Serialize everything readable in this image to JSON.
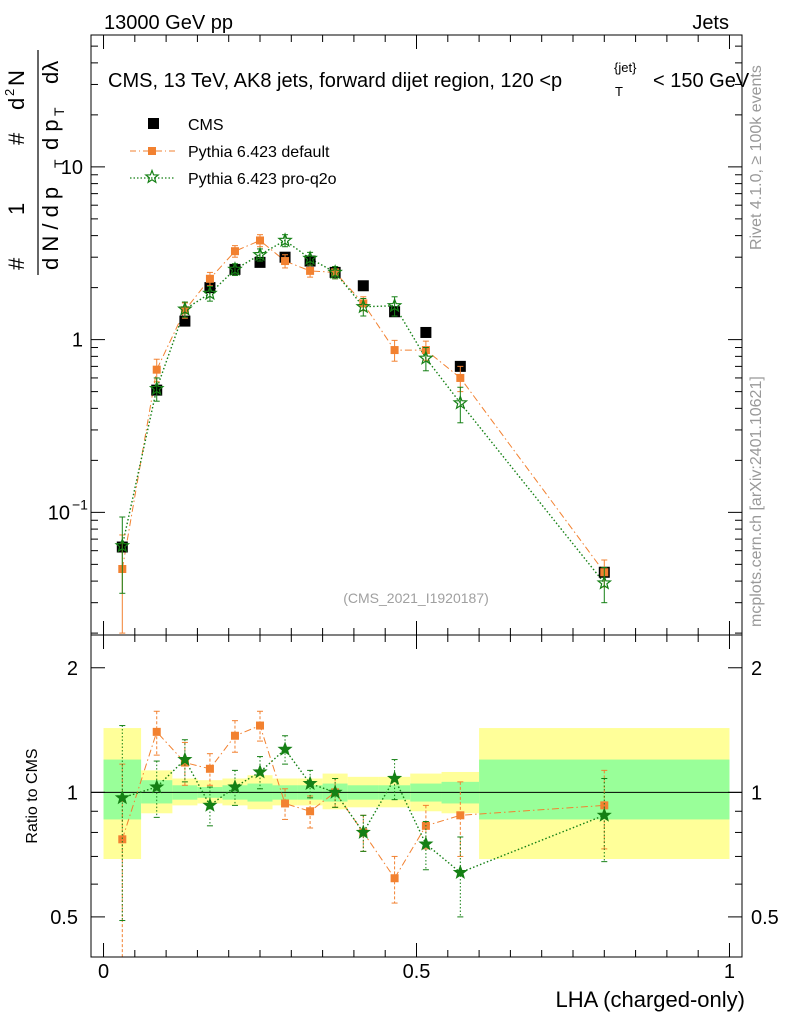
{
  "header": {
    "left": "13000 GeV pp",
    "right": "Jets"
  },
  "side": {
    "rivet": "Rivet 4.1.0, ≥ 100k events",
    "mcplots": "mcplots.cern.ch [arXiv:2401.10621]"
  },
  "chart_data": [
    {
      "type": "scatter",
      "panel": "main",
      "title": "CMS, 13 TeV, AK8 jets, forward dijet region, 120 <p_T^{jet}< 150 GeV",
      "title_main": "CMS, 13 TeV, AK8 jets, forward dijet region, 120 <p",
      "title_sup": "{jet}",
      "title_sub": "T",
      "title_end": "< 150 GeV",
      "ylabel": "#1/dN/dp_T #d²N/dp_T dλ",
      "ylabel_parts": {
        "numer_one": "1",
        "denom_one": "d N / d p",
        "denom_one_sub": "T",
        "hash": "#",
        "numer_two": "d",
        "numer_two_sup": "2",
        "numer_two_end": "N",
        "denom_two": "d p",
        "denom_two_sub": "T",
        "denom_two_end": "dλ"
      },
      "yscale": "log",
      "ylim": [
        0.0195,
        58
      ],
      "xlim": [
        -0.02,
        1.02
      ],
      "ytick_labels": [
        {
          "value": 0.1,
          "base": "10",
          "exp": "−1"
        },
        {
          "value": 1,
          "base": "1",
          "exp": ""
        },
        {
          "value": 10,
          "base": "10",
          "exp": ""
        }
      ],
      "watermark": "(CMS_2021_I1920187)",
      "legend_position": "top-left",
      "x": [
        0.03,
        0.085,
        0.13,
        0.17,
        0.21,
        0.25,
        0.29,
        0.33,
        0.37,
        0.415,
        0.465,
        0.515,
        0.57,
        0.8
      ],
      "series": [
        {
          "name": "CMS",
          "marker": "square",
          "color": "#000000",
          "values": [
            0.063,
            0.51,
            1.28,
            2.0,
            2.55,
            2.8,
            3.0,
            2.85,
            2.45,
            2.05,
            1.45,
            1.1,
            0.7,
            0.045
          ],
          "errors": [
            0.005,
            0.03,
            0.06,
            0.08,
            0.1,
            0.1,
            0.1,
            0.1,
            0.09,
            0.08,
            0.06,
            0.05,
            0.04,
            0.003
          ]
        },
        {
          "name": "Pythia 6.423 default",
          "marker": "filled-square",
          "color": "#f28130",
          "linestyle": "dashdot",
          "values": [
            0.047,
            0.67,
            1.48,
            2.25,
            3.25,
            3.75,
            2.85,
            2.5,
            2.45,
            1.62,
            0.87,
            0.87,
            0.6,
            0.045
          ],
          "errors": [
            0.027,
            0.1,
            0.15,
            0.2,
            0.25,
            0.3,
            0.25,
            0.2,
            0.2,
            0.15,
            0.12,
            0.11,
            0.1,
            0.008
          ]
        },
        {
          "name": "Pythia 6.423 pro-q2o",
          "marker": "star",
          "color": "#158015",
          "linestyle": "dotted",
          "values": [
            0.064,
            0.52,
            1.5,
            1.85,
            2.55,
            3.1,
            3.75,
            2.95,
            2.45,
            1.55,
            1.57,
            0.78,
            0.43,
            0.039
          ],
          "errors": [
            0.03,
            0.08,
            0.15,
            0.18,
            0.2,
            0.25,
            0.3,
            0.25,
            0.2,
            0.18,
            0.2,
            0.12,
            0.1,
            0.009
          ]
        }
      ]
    },
    {
      "type": "scatter",
      "panel": "ratio",
      "ylabel": "Ratio to CMS",
      "xlabel": "LHA (charged-only)",
      "yscale": "log",
      "ylim": [
        0.4,
        2.4
      ],
      "xlim": [
        -0.02,
        1.02
      ],
      "yticks": [
        0.5,
        1,
        2
      ],
      "ytick_labels": [
        "0.5",
        "1",
        "2"
      ],
      "xticks": [
        0,
        0.5,
        1
      ],
      "xtick_labels": [
        "0",
        "0.5",
        "1"
      ],
      "reference": 1,
      "bands": [
        {
          "x0": 0.0,
          "x1": 0.06,
          "yellow": [
            0.69,
            1.43
          ],
          "green": [
            0.86,
            1.2
          ]
        },
        {
          "x0": 0.06,
          "x1": 0.11,
          "yellow": [
            0.89,
            1.13
          ],
          "green": [
            0.94,
            1.07
          ]
        },
        {
          "x0": 0.11,
          "x1": 0.15,
          "yellow": [
            0.93,
            1.08
          ],
          "green": [
            0.96,
            1.04
          ]
        },
        {
          "x0": 0.15,
          "x1": 0.19,
          "yellow": [
            0.94,
            1.07
          ],
          "green": [
            0.97,
            1.03
          ]
        },
        {
          "x0": 0.19,
          "x1": 0.23,
          "yellow": [
            0.93,
            1.08
          ],
          "green": [
            0.96,
            1.04
          ]
        },
        {
          "x0": 0.23,
          "x1": 0.27,
          "yellow": [
            0.91,
            1.1
          ],
          "green": [
            0.95,
            1.05
          ]
        },
        {
          "x0": 0.27,
          "x1": 0.31,
          "yellow": [
            0.93,
            1.08
          ],
          "green": [
            0.96,
            1.04
          ]
        },
        {
          "x0": 0.31,
          "x1": 0.35,
          "yellow": [
            0.93,
            1.08
          ],
          "green": [
            0.96,
            1.04
          ]
        },
        {
          "x0": 0.35,
          "x1": 0.39,
          "yellow": [
            0.91,
            1.11
          ],
          "green": [
            0.95,
            1.05
          ]
        },
        {
          "x0": 0.39,
          "x1": 0.44,
          "yellow": [
            0.92,
            1.09
          ],
          "green": [
            0.96,
            1.04
          ]
        },
        {
          "x0": 0.44,
          "x1": 0.49,
          "yellow": [
            0.92,
            1.09
          ],
          "green": [
            0.96,
            1.04
          ]
        },
        {
          "x0": 0.49,
          "x1": 0.54,
          "yellow": [
            0.9,
            1.11
          ],
          "green": [
            0.95,
            1.05
          ]
        },
        {
          "x0": 0.54,
          "x1": 0.6,
          "yellow": [
            0.89,
            1.12
          ],
          "green": [
            0.94,
            1.06
          ]
        },
        {
          "x0": 0.6,
          "x1": 1.0,
          "yellow": [
            0.69,
            1.43
          ],
          "green": [
            0.86,
            1.2
          ]
        }
      ],
      "series": [
        {
          "name": "Pythia 6.423 default",
          "color": "#f28130",
          "values": [
            0.77,
            1.4,
            1.18,
            1.14,
            1.37,
            1.45,
            0.94,
            0.9,
            1.0,
            0.8,
            0.62,
            0.83,
            0.88,
            0.93
          ],
          "errors": [
            0.4,
            0.17,
            0.14,
            0.1,
            0.12,
            0.12,
            0.08,
            0.08,
            0.08,
            0.08,
            0.08,
            0.1,
            0.18,
            0.2
          ]
        },
        {
          "name": "Pythia 6.423 pro-q2o",
          "color": "#158015",
          "values": [
            0.97,
            1.03,
            1.2,
            0.93,
            1.03,
            1.12,
            1.27,
            1.05,
            1.0,
            0.8,
            1.08,
            0.75,
            0.64,
            0.88
          ],
          "errors": [
            0.48,
            0.16,
            0.14,
            0.1,
            0.1,
            0.1,
            0.1,
            0.08,
            0.08,
            0.08,
            0.12,
            0.1,
            0.14,
            0.2
          ]
        }
      ]
    }
  ]
}
